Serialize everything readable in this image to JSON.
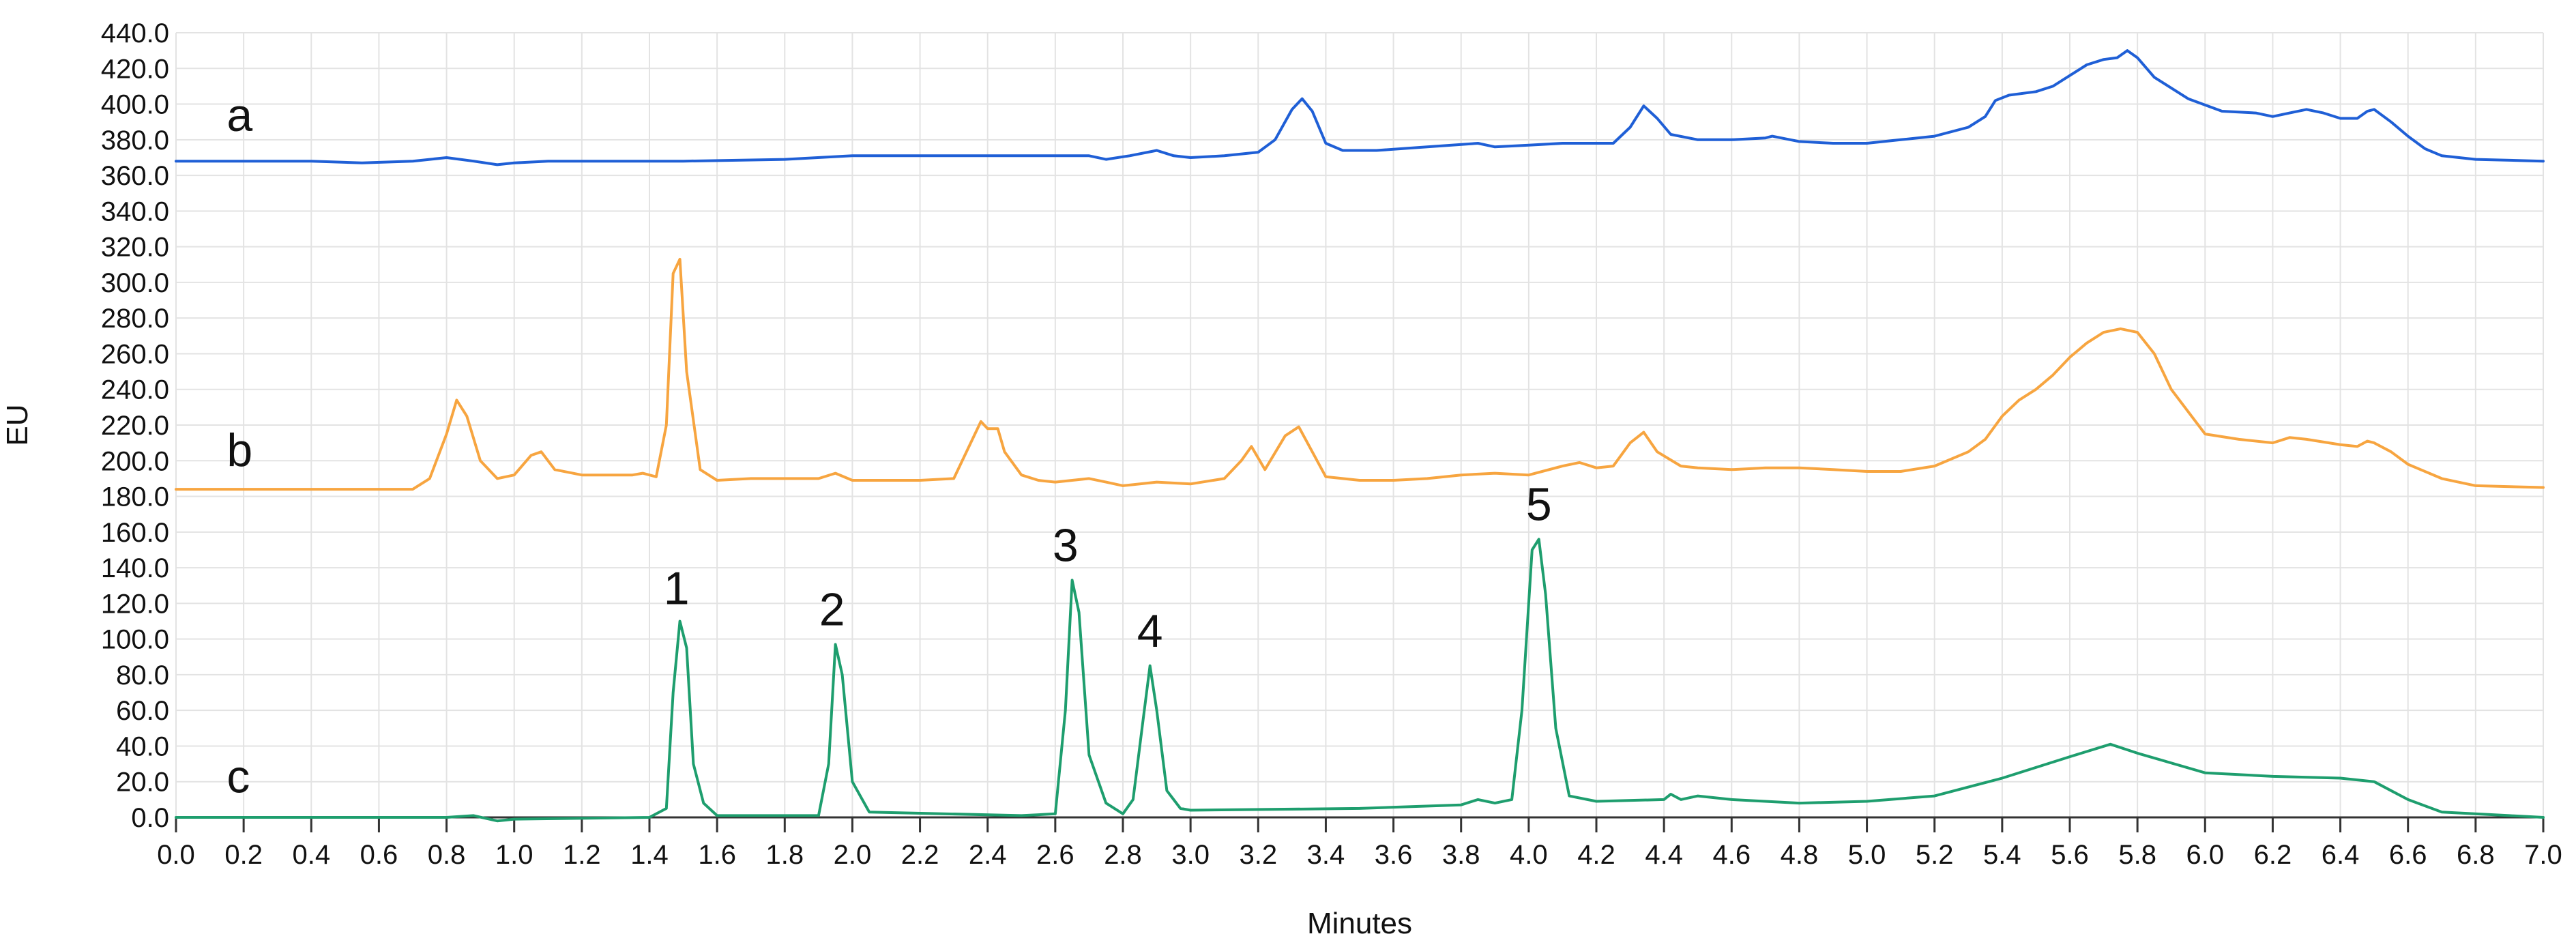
{
  "chart_data": {
    "type": "line",
    "title": "",
    "xlabel": "Minutes",
    "ylabel": "EU",
    "xlim": [
      0.0,
      7.0
    ],
    "ylim": [
      0.0,
      440.0
    ],
    "x_ticks": [
      "0.0",
      "0.2",
      "0.4",
      "0.6",
      "0.8",
      "1.0",
      "1.2",
      "1.4",
      "1.6",
      "1.8",
      "2.0",
      "2.2",
      "2.4",
      "2.6",
      "2.8",
      "3.0",
      "3.2",
      "3.4",
      "3.6",
      "3.8",
      "4.0",
      "4.2",
      "4.4",
      "4.6",
      "4.8",
      "5.0",
      "5.2",
      "5.4",
      "5.6",
      "5.8",
      "6.0",
      "6.2",
      "6.4",
      "6.6",
      "6.8",
      "7.0"
    ],
    "y_ticks": [
      "0.0",
      "20.0",
      "40.0",
      "60.0",
      "80.0",
      "100.0",
      "120.0",
      "140.0",
      "160.0",
      "180.0",
      "200.0",
      "220.0",
      "240.0",
      "260.0",
      "280.0",
      "300.0",
      "320.0",
      "340.0",
      "360.0",
      "380.0",
      "400.0",
      "420.0",
      "440.0"
    ],
    "grid": true,
    "legend": "none",
    "series": [
      {
        "label": "a",
        "color": "#1f5fd6",
        "x": [
          0.0,
          0.4,
          0.55,
          0.7,
          0.8,
          0.88,
          0.95,
          1.0,
          1.1,
          1.5,
          1.8,
          2.0,
          2.2,
          2.6,
          2.7,
          2.75,
          2.82,
          2.9,
          2.95,
          3.0,
          3.1,
          3.2,
          3.25,
          3.3,
          3.33,
          3.36,
          3.4,
          3.45,
          3.55,
          3.7,
          3.85,
          3.9,
          4.0,
          4.1,
          4.25,
          4.3,
          4.34,
          4.38,
          4.42,
          4.5,
          4.6,
          4.7,
          4.72,
          4.8,
          4.9,
          5.0,
          5.1,
          5.2,
          5.3,
          5.35,
          5.38,
          5.42,
          5.5,
          5.55,
          5.6,
          5.65,
          5.7,
          5.74,
          5.77,
          5.8,
          5.85,
          5.95,
          6.05,
          6.15,
          6.2,
          6.25,
          6.3,
          6.35,
          6.4,
          6.45,
          6.48,
          6.5,
          6.55,
          6.6,
          6.65,
          6.7,
          6.8,
          7.0
        ],
        "y": [
          368,
          368,
          367,
          368,
          370,
          368,
          366,
          367,
          368,
          368,
          369,
          371,
          371,
          371,
          371,
          369,
          371,
          374,
          371,
          370,
          371,
          373,
          380,
          397,
          403,
          396,
          378,
          374,
          374,
          376,
          378,
          376,
          377,
          378,
          378,
          387,
          399,
          392,
          383,
          380,
          380,
          381,
          382,
          379,
          378,
          378,
          380,
          382,
          387,
          393,
          402,
          405,
          407,
          410,
          416,
          422,
          425,
          426,
          430,
          426,
          415,
          403,
          396,
          395,
          393,
          395,
          397,
          395,
          392,
          392,
          396,
          397,
          390,
          382,
          375,
          371,
          369,
          368
        ]
      },
      {
        "label": "b",
        "color": "#f7a540",
        "x": [
          0.0,
          0.7,
          0.75,
          0.8,
          0.83,
          0.86,
          0.9,
          0.95,
          1.0,
          1.05,
          1.08,
          1.12,
          1.2,
          1.35,
          1.38,
          1.42,
          1.45,
          1.47,
          1.49,
          1.51,
          1.55,
          1.6,
          1.7,
          1.9,
          1.95,
          2.0,
          2.1,
          2.2,
          2.3,
          2.38,
          2.4,
          2.43,
          2.45,
          2.5,
          2.55,
          2.6,
          2.7,
          2.75,
          2.8,
          2.9,
          3.0,
          3.1,
          3.15,
          3.18,
          3.22,
          3.28,
          3.32,
          3.36,
          3.4,
          3.5,
          3.6,
          3.7,
          3.8,
          3.9,
          4.0,
          4.1,
          4.15,
          4.2,
          4.25,
          4.3,
          4.34,
          4.38,
          4.45,
          4.5,
          4.6,
          4.7,
          4.8,
          4.9,
          5.0,
          5.1,
          5.2,
          5.3,
          5.35,
          5.4,
          5.45,
          5.5,
          5.55,
          5.6,
          5.65,
          5.7,
          5.75,
          5.8,
          5.85,
          5.9,
          6.0,
          6.1,
          6.2,
          6.25,
          6.3,
          6.4,
          6.45,
          6.48,
          6.5,
          6.55,
          6.6,
          6.7,
          6.8,
          7.0
        ],
        "y": [
          184,
          184,
          190,
          215,
          234,
          225,
          200,
          190,
          192,
          203,
          205,
          195,
          192,
          192,
          193,
          191,
          220,
          305,
          313,
          250,
          195,
          189,
          190,
          190,
          193,
          189,
          189,
          189,
          190,
          222,
          218,
          218,
          205,
          192,
          189,
          188,
          190,
          188,
          186,
          188,
          187,
          190,
          200,
          208,
          195,
          214,
          219,
          205,
          191,
          189,
          189,
          190,
          192,
          193,
          192,
          197,
          199,
          196,
          197,
          210,
          216,
          205,
          197,
          196,
          195,
          196,
          196,
          195,
          194,
          194,
          197,
          205,
          212,
          225,
          234,
          240,
          248,
          258,
          266,
          272,
          274,
          272,
          260,
          240,
          215,
          212,
          210,
          213,
          212,
          209,
          208,
          211,
          210,
          205,
          198,
          190,
          186,
          185
        ]
      },
      {
        "label": "c",
        "color": "#1e9e6e",
        "x": [
          0.0,
          0.8,
          0.88,
          0.95,
          1.0,
          1.4,
          1.45,
          1.47,
          1.49,
          1.51,
          1.53,
          1.56,
          1.6,
          1.9,
          1.93,
          1.95,
          1.97,
          2.0,
          2.05,
          2.5,
          2.6,
          2.63,
          2.65,
          2.67,
          2.7,
          2.75,
          2.8,
          2.83,
          2.86,
          2.88,
          2.9,
          2.93,
          2.97,
          3.0,
          3.5,
          3.8,
          3.85,
          3.9,
          3.95,
          3.98,
          4.01,
          4.03,
          4.05,
          4.08,
          4.12,
          4.2,
          4.4,
          4.42,
          4.45,
          4.5,
          4.6,
          4.8,
          5.0,
          5.2,
          5.4,
          5.6,
          5.72,
          5.8,
          6.0,
          6.2,
          6.4,
          6.5,
          6.55,
          6.6,
          6.7,
          6.9,
          7.0
        ],
        "y": [
          0,
          0,
          1,
          -2,
          -1,
          0,
          5,
          70,
          110,
          95,
          30,
          8,
          1,
          1,
          30,
          97,
          80,
          20,
          3,
          1,
          2,
          60,
          133,
          115,
          35,
          8,
          2,
          10,
          55,
          85,
          60,
          15,
          5,
          4,
          5,
          7,
          10,
          8,
          10,
          60,
          150,
          156,
          125,
          50,
          12,
          9,
          10,
          13,
          10,
          12,
          10,
          8,
          9,
          12,
          22,
          34,
          41,
          36,
          25,
          23,
          22,
          20,
          15,
          10,
          3,
          1,
          0
        ]
      }
    ],
    "peak_labels": [
      {
        "text": "1",
        "x": 1.48,
        "y": 112
      },
      {
        "text": "2",
        "x": 1.94,
        "y": 100
      },
      {
        "text": "3",
        "x": 2.63,
        "y": 136
      },
      {
        "text": "4",
        "x": 2.88,
        "y": 88
      },
      {
        "text": "5",
        "x": 4.03,
        "y": 159
      }
    ],
    "trace_labels": [
      {
        "text": "a",
        "x": 0.15,
        "y": 385
      },
      {
        "text": "b",
        "x": 0.15,
        "y": 197
      },
      {
        "text": "c",
        "x": 0.15,
        "y": 14
      }
    ]
  }
}
